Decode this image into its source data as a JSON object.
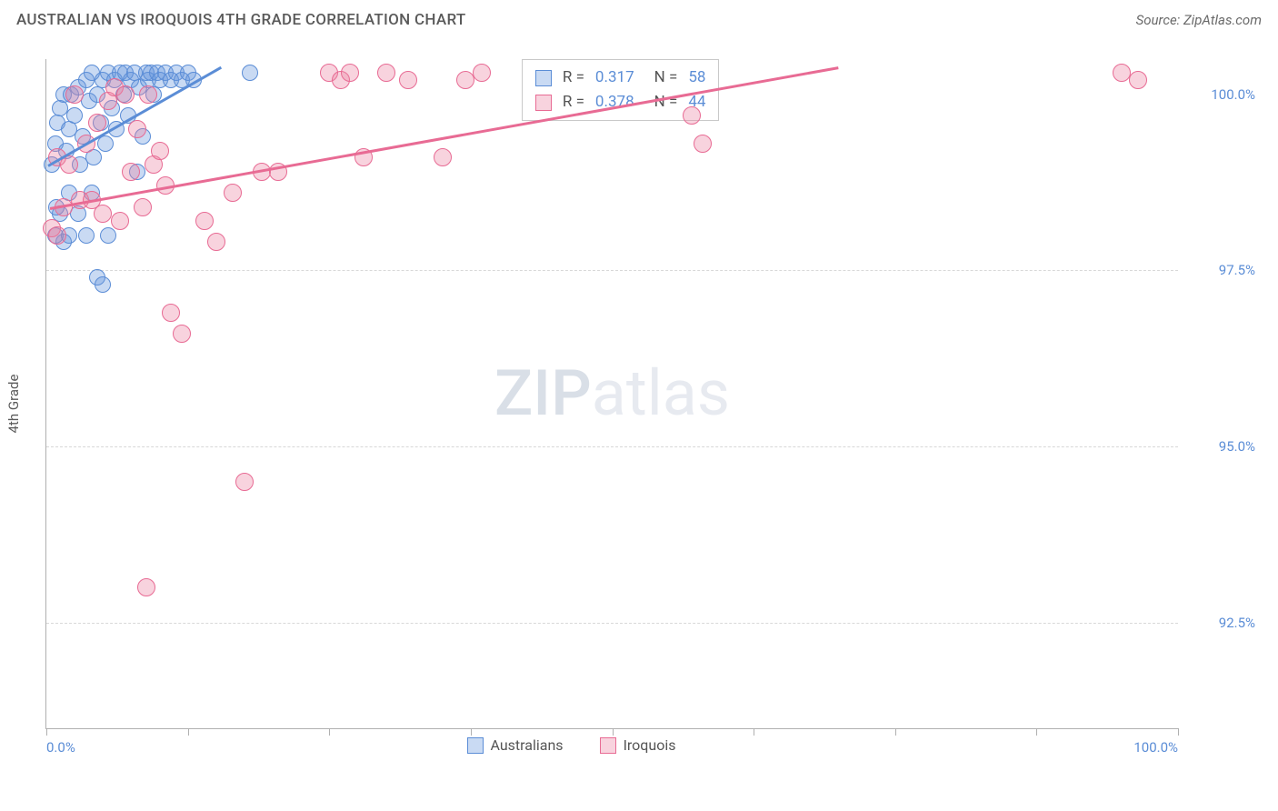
{
  "title": "AUSTRALIAN VS IROQUOIS 4TH GRADE CORRELATION CHART",
  "source_label": "Source: ZipAtlas.com",
  "ylabel": "4th Grade",
  "watermark": {
    "part1": "ZIP",
    "part2": "atlas"
  },
  "chart": {
    "type": "scatter",
    "background_color": "#ffffff",
    "grid_color": "#d8d8d8",
    "axis_color": "#b0b0b0",
    "tick_label_color": "#5b8dd6",
    "label_fontsize": 15,
    "xlim": [
      0,
      100
    ],
    "ylim": [
      91,
      100.5
    ],
    "x_ticks_major": [
      0,
      12.5,
      25,
      37.5,
      50,
      62.5,
      75,
      87.5,
      100
    ],
    "x_tick_labels": [
      {
        "pos": 0,
        "label": "0.0%",
        "align": "left"
      },
      {
        "pos": 100,
        "label": "100.0%",
        "align": "right"
      }
    ],
    "y_gridlines": [
      92.5,
      95.0,
      97.5
    ],
    "y_tick_labels": [
      {
        "pos": 92.5,
        "label": "92.5%"
      },
      {
        "pos": 95.0,
        "label": "95.0%"
      },
      {
        "pos": 97.5,
        "label": "97.5%"
      },
      {
        "pos": 100.0,
        "label": "100.0%"
      }
    ],
    "series": [
      {
        "name": "Australians",
        "fill": "rgba(100,150,220,0.35)",
        "stroke": "#5b8dd6",
        "marker_radius": 9,
        "trend": {
          "x1": 0.2,
          "y1": 99.0,
          "x2": 15.5,
          "y2": 100.4,
          "width": 3
        },
        "points": [
          [
            0.5,
            99.0
          ],
          [
            0.8,
            99.3
          ],
          [
            1.0,
            99.6
          ],
          [
            1.2,
            99.8
          ],
          [
            1.5,
            100.0
          ],
          [
            1.8,
            99.2
          ],
          [
            2.0,
            99.5
          ],
          [
            2.2,
            100.0
          ],
          [
            2.5,
            99.7
          ],
          [
            2.8,
            100.1
          ],
          [
            3.0,
            99.0
          ],
          [
            3.2,
            99.4
          ],
          [
            3.5,
            100.2
          ],
          [
            3.8,
            99.9
          ],
          [
            4.0,
            100.3
          ],
          [
            4.0,
            98.6
          ],
          [
            4.2,
            99.1
          ],
          [
            4.5,
            100.0
          ],
          [
            4.8,
            99.6
          ],
          [
            5.0,
            100.2
          ],
          [
            5.2,
            99.3
          ],
          [
            5.5,
            100.3
          ],
          [
            5.8,
            99.8
          ],
          [
            6.0,
            100.2
          ],
          [
            6.2,
            99.5
          ],
          [
            6.5,
            100.3
          ],
          [
            6.8,
            100.0
          ],
          [
            7.0,
            100.3
          ],
          [
            7.2,
            99.7
          ],
          [
            7.5,
            100.2
          ],
          [
            7.8,
            100.3
          ],
          [
            8.0,
            98.9
          ],
          [
            8.2,
            100.1
          ],
          [
            8.5,
            99.4
          ],
          [
            8.8,
            100.3
          ],
          [
            9.0,
            100.2
          ],
          [
            9.2,
            100.3
          ],
          [
            9.5,
            100.0
          ],
          [
            9.8,
            100.3
          ],
          [
            10.0,
            100.2
          ],
          [
            10.5,
            100.3
          ],
          [
            11.0,
            100.2
          ],
          [
            11.5,
            100.3
          ],
          [
            12.0,
            100.2
          ],
          [
            12.5,
            100.3
          ],
          [
            13.0,
            100.2
          ],
          [
            2.0,
            98.6
          ],
          [
            2.8,
            98.3
          ],
          [
            3.5,
            98.0
          ],
          [
            1.2,
            98.3
          ],
          [
            0.9,
            98.4
          ],
          [
            4.5,
            97.4
          ],
          [
            5.0,
            97.3
          ],
          [
            5.5,
            98.0
          ],
          [
            1.5,
            97.9
          ],
          [
            0.8,
            98.0
          ],
          [
            2.0,
            98.0
          ],
          [
            18,
            100.3
          ]
        ]
      },
      {
        "name": "Iroquois",
        "fill": "rgba(235,130,160,0.35)",
        "stroke": "#e86b94",
        "marker_radius": 10,
        "trend": {
          "x1": 0.3,
          "y1": 98.4,
          "x2": 70,
          "y2": 100.4,
          "width": 2.5
        },
        "points": [
          [
            0.5,
            98.1
          ],
          [
            1.0,
            99.1
          ],
          [
            1.5,
            98.4
          ],
          [
            2.0,
            99.0
          ],
          [
            2.5,
            100.0
          ],
          [
            3.0,
            98.5
          ],
          [
            3.5,
            99.3
          ],
          [
            4.0,
            98.5
          ],
          [
            4.5,
            99.6
          ],
          [
            5.0,
            98.3
          ],
          [
            5.5,
            99.9
          ],
          [
            6.0,
            100.1
          ],
          [
            6.5,
            98.2
          ],
          [
            7.0,
            100.0
          ],
          [
            7.5,
            98.9
          ],
          [
            8.0,
            99.5
          ],
          [
            8.5,
            98.4
          ],
          [
            9.0,
            100.0
          ],
          [
            9.5,
            99.0
          ],
          [
            10.0,
            99.2
          ],
          [
            10.5,
            98.7
          ],
          [
            12.0,
            96.6
          ],
          [
            14.0,
            98.2
          ],
          [
            15.0,
            97.9
          ],
          [
            16.5,
            98.6
          ],
          [
            17.5,
            94.5
          ],
          [
            19.0,
            98.9
          ],
          [
            20.5,
            98.9
          ],
          [
            25.0,
            100.3
          ],
          [
            26.0,
            100.2
          ],
          [
            26.8,
            100.3
          ],
          [
            28.0,
            99.1
          ],
          [
            30.0,
            100.3
          ],
          [
            32.0,
            100.2
          ],
          [
            35.0,
            99.1
          ],
          [
            37.0,
            100.2
          ],
          [
            38.5,
            100.3
          ],
          [
            57.0,
            99.7
          ],
          [
            58.0,
            99.3
          ],
          [
            95.0,
            100.3
          ],
          [
            96.5,
            100.2
          ],
          [
            8.8,
            93.0
          ],
          [
            11.0,
            96.9
          ],
          [
            1.0,
            98.0
          ]
        ]
      }
    ],
    "stats_box": {
      "rows": [
        {
          "swatch_fill": "rgba(100,150,220,0.35)",
          "swatch_stroke": "#5b8dd6",
          "r_label": "R =",
          "r_value": "0.317",
          "n_label": "N =",
          "n_value": "58"
        },
        {
          "swatch_fill": "rgba(235,130,160,0.35)",
          "swatch_stroke": "#e86b94",
          "r_label": "R =",
          "r_value": "0.378",
          "n_label": "N =",
          "n_value": "44"
        }
      ]
    },
    "legend_bottom": [
      {
        "swatch_fill": "rgba(100,150,220,0.35)",
        "swatch_stroke": "#5b8dd6",
        "label": "Australians"
      },
      {
        "swatch_fill": "rgba(235,130,160,0.35)",
        "swatch_stroke": "#e86b94",
        "label": "Iroquois"
      }
    ]
  }
}
